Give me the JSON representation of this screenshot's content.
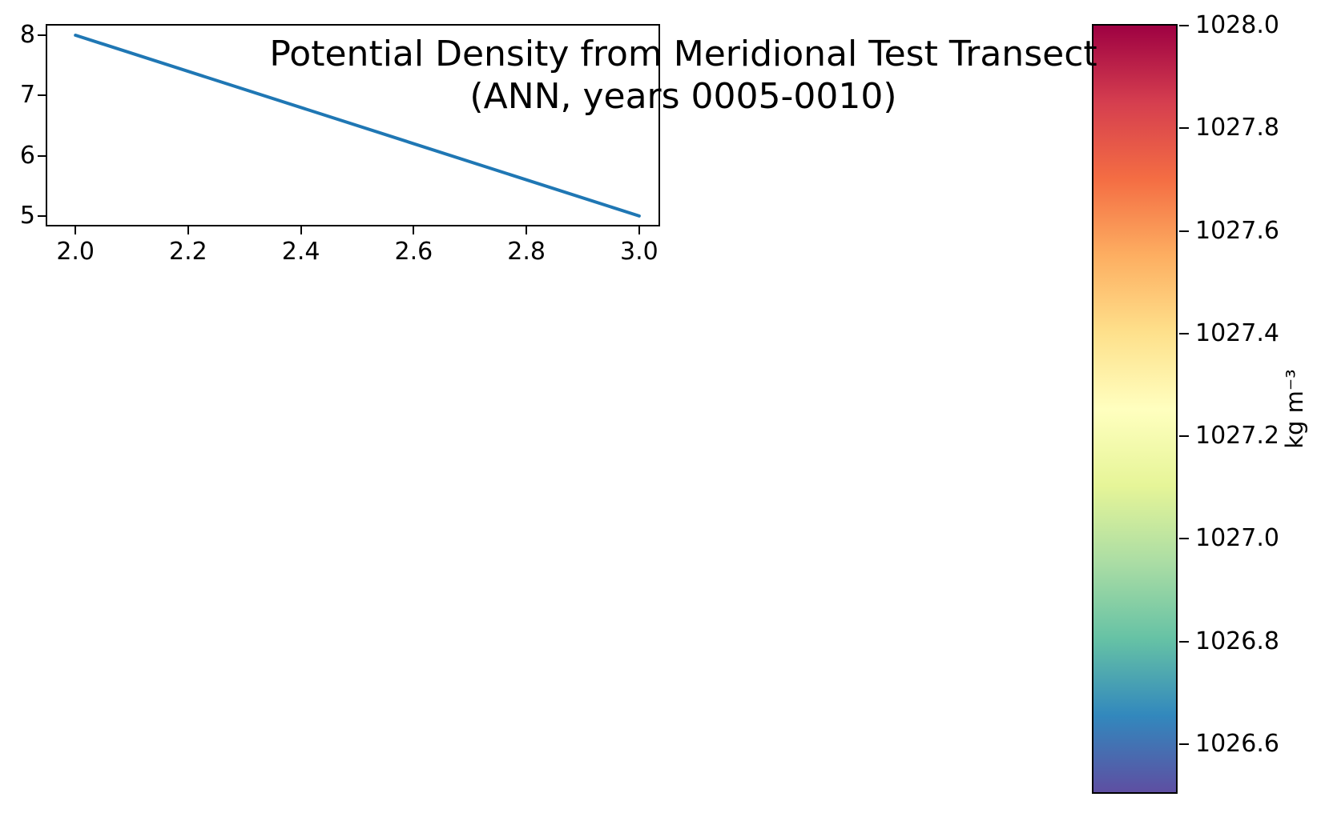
{
  "figure": {
    "background": "#ffffff",
    "title_line1": "Potential Density from Meridional Test Transect",
    "title_line2": "(ANN, years 0005-0010)"
  },
  "chart_data": [
    {
      "type": "line",
      "title": "Potential Density from Meridional Test Transect (ANN, years 0005-0010)",
      "x": [
        2.0,
        3.0
      ],
      "y": [
        8.0,
        5.0
      ],
      "xlim": [
        1.95,
        3.04
      ],
      "ylim": [
        4.8,
        8.16
      ],
      "xticks": [
        {
          "value": 2.0,
          "label": "2.0"
        },
        {
          "value": 2.2,
          "label": "2.2"
        },
        {
          "value": 2.4,
          "label": "2.4"
        },
        {
          "value": 2.6,
          "label": "2.6"
        },
        {
          "value": 2.8,
          "label": "2.8"
        },
        {
          "value": 3.0,
          "label": "3.0"
        }
      ],
      "yticks": [
        {
          "value": 5,
          "label": "5"
        },
        {
          "value": 6,
          "label": "6"
        },
        {
          "value": 7,
          "label": "7"
        },
        {
          "value": 8,
          "label": "8"
        }
      ],
      "line_color": "#1f77b4",
      "line_width": 4,
      "grid": false,
      "legend": null
    },
    {
      "type": "colorbar",
      "label": "kg m⁻³",
      "colormap": "Spectral_r",
      "vmin": 1026.5,
      "vmax": 1028.0,
      "ticks": [
        {
          "value": 1026.6,
          "label": "1026.6"
        },
        {
          "value": 1026.8,
          "label": "1026.8"
        },
        {
          "value": 1027.0,
          "label": "1027.0"
        },
        {
          "value": 1027.2,
          "label": "1027.2"
        },
        {
          "value": 1027.4,
          "label": "1027.4"
        },
        {
          "value": 1027.6,
          "label": "1027.6"
        },
        {
          "value": 1027.8,
          "label": "1027.8"
        },
        {
          "value": 1028.0,
          "label": "1028.0"
        }
      ],
      "stops": [
        {
          "pos": 0.0,
          "color": "#5e4fa2"
        },
        {
          "pos": 0.1,
          "color": "#3288bd"
        },
        {
          "pos": 0.2,
          "color": "#66c2a5"
        },
        {
          "pos": 0.3,
          "color": "#abdda4"
        },
        {
          "pos": 0.4,
          "color": "#e6f598"
        },
        {
          "pos": 0.5,
          "color": "#ffffbf"
        },
        {
          "pos": 0.6,
          "color": "#fee08b"
        },
        {
          "pos": 0.7,
          "color": "#fdae61"
        },
        {
          "pos": 0.8,
          "color": "#f46d43"
        },
        {
          "pos": 0.9,
          "color": "#d53e4f"
        },
        {
          "pos": 1.0,
          "color": "#9e0142"
        }
      ]
    }
  ]
}
